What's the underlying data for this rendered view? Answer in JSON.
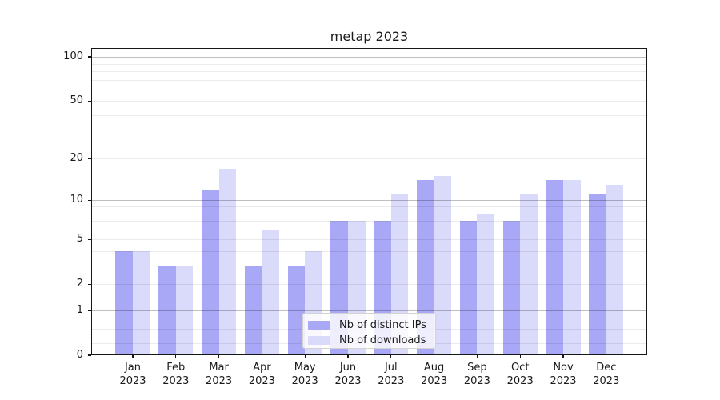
{
  "chart_data": {
    "type": "bar",
    "title": "metap 2023",
    "categories": [
      {
        "month": "Jan",
        "year": "2023"
      },
      {
        "month": "Feb",
        "year": "2023"
      },
      {
        "month": "Mar",
        "year": "2023"
      },
      {
        "month": "Apr",
        "year": "2023"
      },
      {
        "month": "May",
        "year": "2023"
      },
      {
        "month": "Jun",
        "year": "2023"
      },
      {
        "month": "Jul",
        "year": "2023"
      },
      {
        "month": "Aug",
        "year": "2023"
      },
      {
        "month": "Sep",
        "year": "2023"
      },
      {
        "month": "Oct",
        "year": "2023"
      },
      {
        "month": "Nov",
        "year": "2023"
      },
      {
        "month": "Dec",
        "year": "2023"
      }
    ],
    "series": [
      {
        "name": "Nb of distinct IPs",
        "color": "#a8a8f6",
        "values": [
          4,
          3,
          12,
          3,
          3,
          7,
          7,
          14,
          7,
          7,
          14,
          11
        ]
      },
      {
        "name": "Nb of downloads",
        "color": "#dadafa",
        "values": [
          4,
          3,
          17,
          6,
          4,
          7,
          11,
          15,
          8,
          11,
          14,
          13
        ]
      }
    ],
    "yscale": "log1p",
    "ytick_values": [
      0,
      1,
      2,
      5,
      10,
      20,
      50,
      100
    ],
    "ytick_labels": [
      "0",
      "1",
      "2",
      "5",
      "10",
      "20",
      "50",
      "100"
    ],
    "grid_major_values": [
      1,
      10,
      100
    ],
    "grid_minor_values": [
      0.2,
      0.5,
      2,
      3,
      4,
      5,
      6,
      7,
      8,
      9,
      20,
      30,
      40,
      50,
      60,
      70,
      80,
      90
    ],
    "ylim": [
      0,
      110
    ],
    "legend_position": "lower center",
    "frame_color": "#161616",
    "background_color": "#ffffff"
  }
}
